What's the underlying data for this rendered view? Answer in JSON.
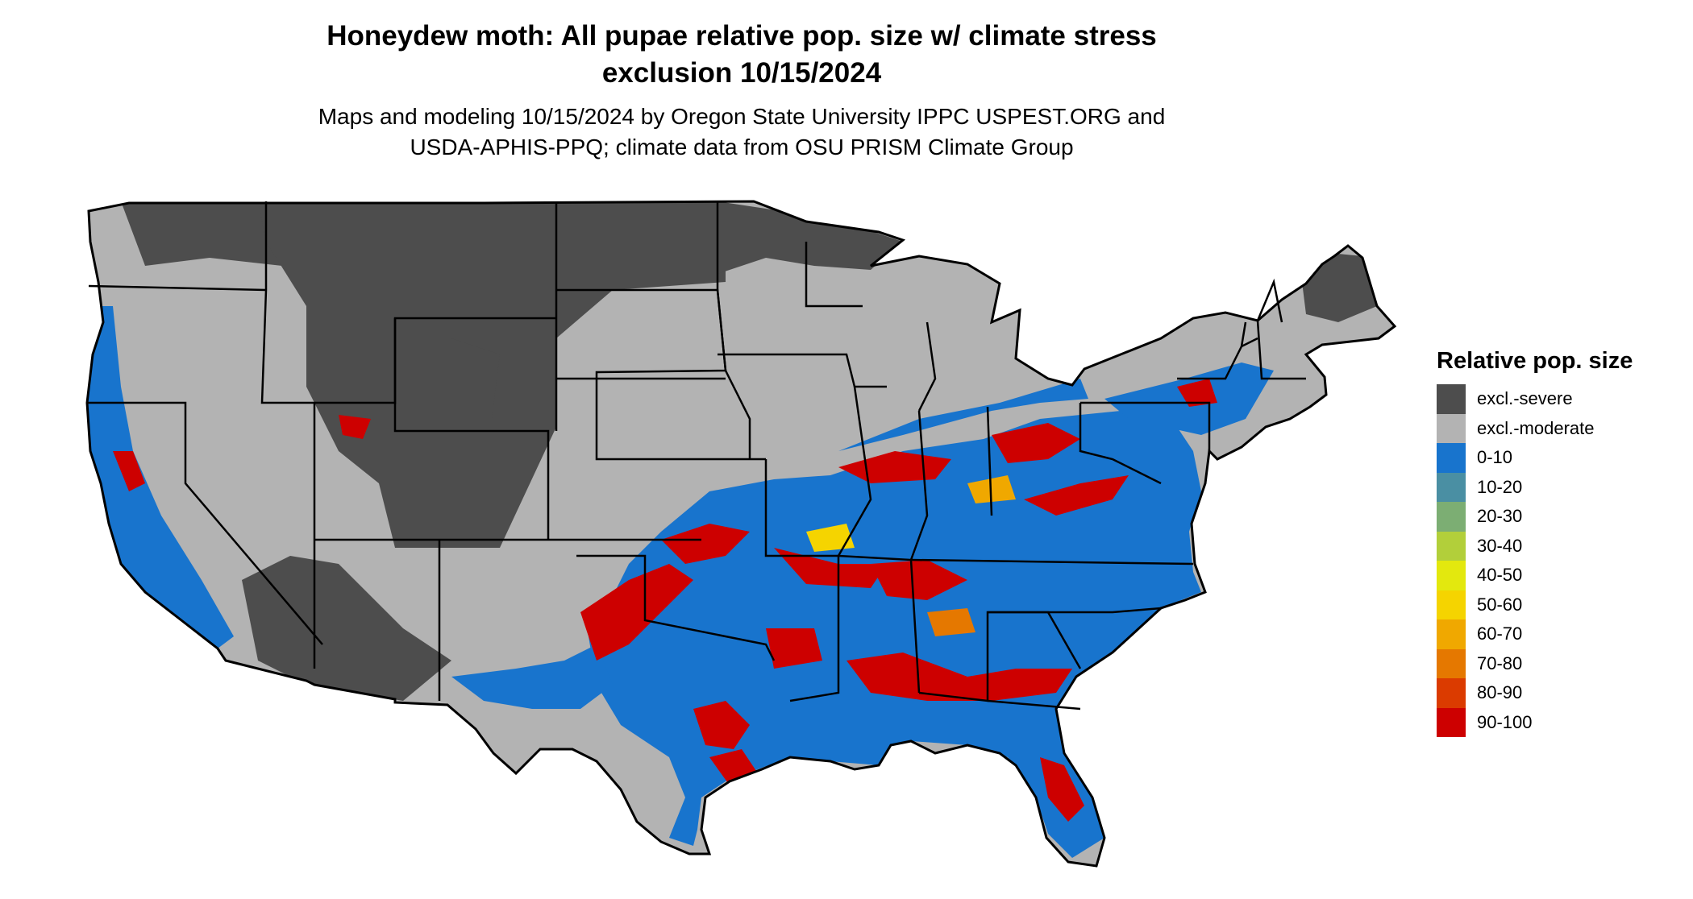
{
  "map": {
    "title_line1": "Honeydew moth: All pupae relative pop. size w/ climate stress",
    "title_line2": "exclusion 10/15/2024",
    "subtitle_line1": "Maps and modeling 10/15/2024 by Oregon State University IPPC USPEST.ORG and",
    "subtitle_line2": "USDA-APHIS-PPQ; climate data from OSU PRISM Climate Group"
  },
  "legend": {
    "title": "Relative pop. size",
    "items": [
      {
        "label": "excl.-severe",
        "color": "#4d4d4d"
      },
      {
        "label": "excl.-moderate",
        "color": "#b3b3b3"
      },
      {
        "label": "0-10",
        "color": "#1874cd"
      },
      {
        "label": "10-20",
        "color": "#4a8fa3"
      },
      {
        "label": "20-30",
        "color": "#7cae73"
      },
      {
        "label": "30-40",
        "color": "#b2cf3a"
      },
      {
        "label": "40-50",
        "color": "#e3e80e"
      },
      {
        "label": "50-60",
        "color": "#f5d400"
      },
      {
        "label": "60-70",
        "color": "#f0a800"
      },
      {
        "label": "70-80",
        "color": "#e57800"
      },
      {
        "label": "80-90",
        "color": "#db3b00"
      },
      {
        "label": "90-100",
        "color": "#cd0000"
      }
    ]
  }
}
